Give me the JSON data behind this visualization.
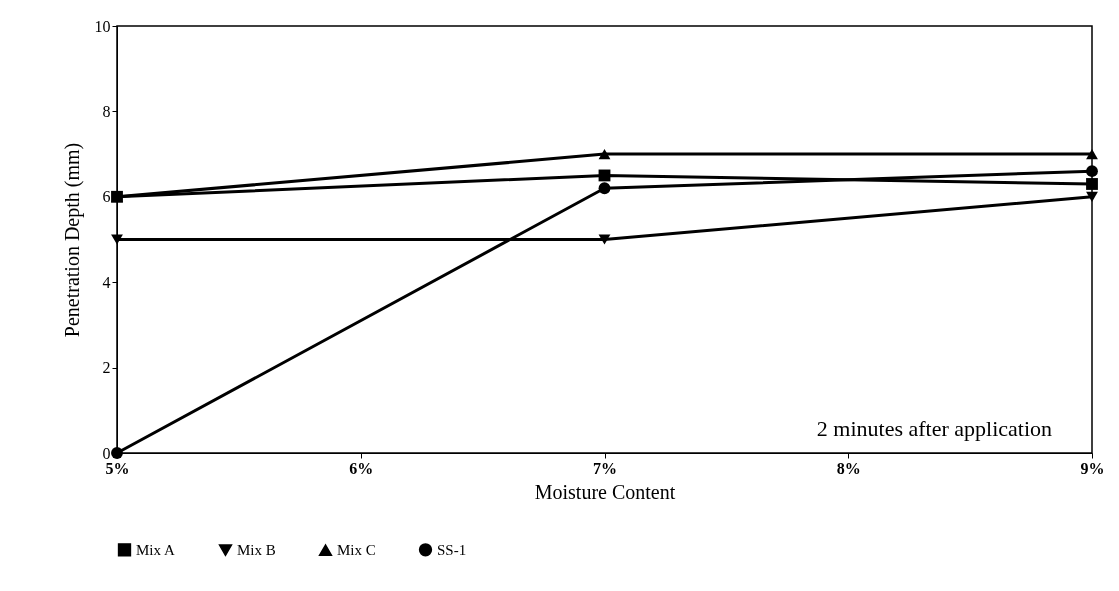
{
  "chart_data": {
    "type": "line",
    "xlabel": "Moisture Content",
    "ylabel": "Penetration Depth (mm)",
    "x": [
      5,
      7,
      9
    ],
    "xlim": [
      5,
      9
    ],
    "xticks": [
      {
        "value": 5,
        "label": "5%"
      },
      {
        "value": 6,
        "label": "6%"
      },
      {
        "value": 7,
        "label": "7%"
      },
      {
        "value": 8,
        "label": "8%"
      },
      {
        "value": 9,
        "label": "9%"
      }
    ],
    "ylim": [
      0,
      10
    ],
    "yticks": [
      0,
      2,
      4,
      6,
      8,
      10
    ],
    "grid": false,
    "legend": "bottom",
    "line_style": "solid",
    "annotations": [
      "2 minutes after application"
    ],
    "series": [
      {
        "name": "Mix A",
        "color": "#000000",
        "marker": "square",
        "values": [
          6,
          6.5,
          6.3
        ]
      },
      {
        "name": "Mix B",
        "color": "#000000",
        "marker": "triangle-down",
        "values": [
          5,
          5,
          6
        ]
      },
      {
        "name": "Mix C",
        "color": "#000000",
        "marker": "triangle",
        "values": [
          6,
          7,
          7
        ]
      },
      {
        "name": "SS-1",
        "color": "#000000",
        "marker": "circle",
        "values": [
          0,
          6.2,
          6.6
        ]
      }
    ]
  }
}
